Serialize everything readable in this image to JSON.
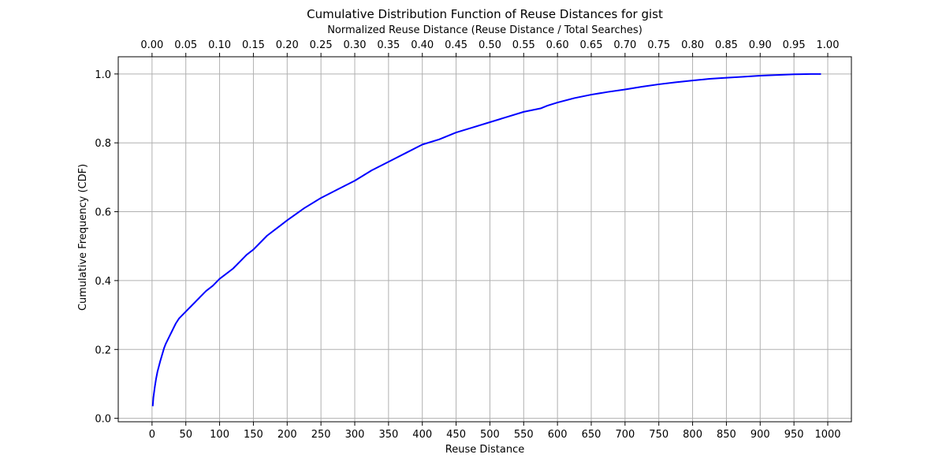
{
  "chart_data": {
    "type": "line",
    "title": "Cumulative Distribution Function of Reuse Distances for gist",
    "xlabel": "Reuse Distance",
    "ylabel": "Cumulative Frequency (CDF)",
    "secondary_xlabel": "Normalized Reuse Distance (Reuse Distance / Total Searches)",
    "xlim": [
      -50,
      1035
    ],
    "ylim": [
      -0.01,
      1.05
    ],
    "grid": true,
    "x_ticks": [
      "0",
      "50",
      "100",
      "150",
      "200",
      "250",
      "300",
      "350",
      "400",
      "450",
      "500",
      "550",
      "600",
      "650",
      "700",
      "750",
      "800",
      "850",
      "900",
      "950",
      "1000"
    ],
    "y_ticks": [
      "0.0",
      "0.2",
      "0.4",
      "0.6",
      "0.8",
      "1.0"
    ],
    "secondary_x_ticks": [
      "0.00",
      "0.05",
      "0.10",
      "0.15",
      "0.20",
      "0.25",
      "0.30",
      "0.35",
      "0.40",
      "0.45",
      "0.50",
      "0.55",
      "0.60",
      "0.65",
      "0.70",
      "0.75",
      "0.80",
      "0.85",
      "0.90",
      "0.95",
      "1.00"
    ],
    "series": [
      {
        "color": "#0000ff",
        "x": [
          1,
          2,
          4,
          6,
          8,
          10,
          12,
          15,
          18,
          20,
          25,
          30,
          35,
          40,
          50,
          60,
          70,
          80,
          90,
          100,
          110,
          120,
          130,
          140,
          150,
          160,
          170,
          180,
          190,
          200,
          225,
          250,
          275,
          300,
          325,
          350,
          375,
          400,
          425,
          450,
          475,
          500,
          525,
          550,
          575,
          585,
          600,
          625,
          650,
          675,
          700,
          725,
          750,
          775,
          800,
          825,
          850,
          875,
          900,
          925,
          950,
          975,
          990
        ],
        "y": [
          0.035,
          0.06,
          0.09,
          0.115,
          0.135,
          0.15,
          0.165,
          0.185,
          0.205,
          0.215,
          0.235,
          0.255,
          0.275,
          0.29,
          0.31,
          0.33,
          0.35,
          0.37,
          0.385,
          0.405,
          0.42,
          0.435,
          0.455,
          0.475,
          0.49,
          0.51,
          0.53,
          0.545,
          0.56,
          0.575,
          0.61,
          0.64,
          0.665,
          0.69,
          0.72,
          0.745,
          0.77,
          0.795,
          0.81,
          0.83,
          0.845,
          0.86,
          0.875,
          0.89,
          0.9,
          0.908,
          0.917,
          0.93,
          0.94,
          0.948,
          0.955,
          0.963,
          0.97,
          0.976,
          0.981,
          0.986,
          0.989,
          0.992,
          0.995,
          0.997,
          0.999,
          1.0,
          1.0
        ]
      }
    ]
  }
}
